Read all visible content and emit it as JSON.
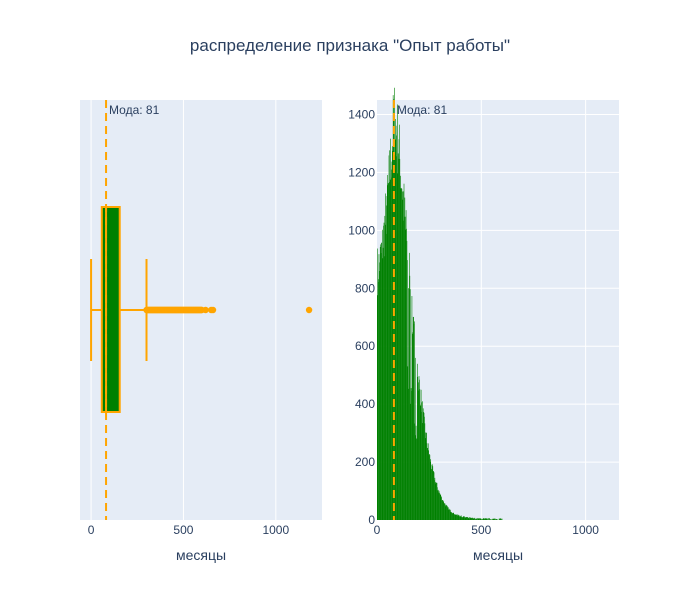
{
  "title": "распределение признака \"Опыт работы\"",
  "colors": {
    "plot_bg": "#e5ecf6",
    "grid": "#ffffff",
    "box_fill": "#008000",
    "box_line": "#ffa500",
    "hist_fill": "#008000",
    "mode_line": "#ffa500",
    "text": "#2a3f5f"
  },
  "chart_data": [
    {
      "type": "box",
      "orientation": "horizontal",
      "xlabel": "месяцы",
      "xlim": [
        -60,
        1250
      ],
      "xticks": [
        0,
        500,
        1000
      ],
      "xtick_labels": [
        "0",
        "500",
        "1000"
      ],
      "stats": {
        "min": 0,
        "q1": 58,
        "median": 81,
        "q3": 155,
        "max": 300
      },
      "outliers_range": [
        300,
        600
      ],
      "outliers_extra": [
        620,
        650,
        660,
        1180
      ],
      "mode": {
        "value": 81,
        "label": "Мода: 81"
      },
      "grid": true
    },
    {
      "type": "histogram",
      "xlabel": "месяцы",
      "xlim": [
        0,
        1160
      ],
      "ylim": [
        0,
        1450
      ],
      "xticks": [
        0,
        500,
        1000
      ],
      "xtick_labels": [
        "0",
        "500",
        "1000"
      ],
      "yticks": [
        0,
        200,
        400,
        600,
        800,
        1000,
        1200,
        1400
      ],
      "ytick_labels": [
        "0",
        "200",
        "400",
        "600",
        "800",
        "1000",
        "1200",
        "1400"
      ],
      "bin_width": 2,
      "shape": {
        "peak_x": 81,
        "peak_y": 1390,
        "tail_end": 600
      },
      "mode": {
        "value": 81,
        "label": "Мода: 81"
      },
      "grid": true
    }
  ]
}
